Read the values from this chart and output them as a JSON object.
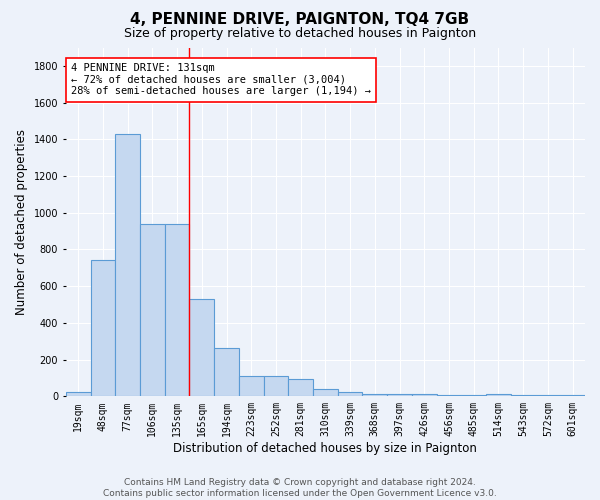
{
  "title": "4, PENNINE DRIVE, PAIGNTON, TQ4 7GB",
  "subtitle": "Size of property relative to detached houses in Paignton",
  "xlabel": "Distribution of detached houses by size in Paignton",
  "ylabel": "Number of detached properties",
  "bar_labels": [
    "19sqm",
    "48sqm",
    "77sqm",
    "106sqm",
    "135sqm",
    "165sqm",
    "194sqm",
    "223sqm",
    "252sqm",
    "281sqm",
    "310sqm",
    "339sqm",
    "368sqm",
    "397sqm",
    "426sqm",
    "456sqm",
    "485sqm",
    "514sqm",
    "543sqm",
    "572sqm",
    "601sqm"
  ],
  "bar_values": [
    25,
    740,
    1430,
    940,
    940,
    530,
    265,
    110,
    110,
    95,
    40,
    25,
    15,
    15,
    15,
    5,
    5,
    15,
    5,
    5,
    5
  ],
  "bar_color": "#c5d8f0",
  "bar_edge_color": "#5b9bd5",
  "bar_edge_width": 0.8,
  "red_line_x": 4.5,
  "annotation_text": "4 PENNINE DRIVE: 131sqm\n← 72% of detached houses are smaller (3,004)\n28% of semi-detached houses are larger (1,194) →",
  "annotation_box_color": "white",
  "annotation_box_edge_color": "red",
  "ylim": [
    0,
    1900
  ],
  "yticks": [
    0,
    200,
    400,
    600,
    800,
    1000,
    1200,
    1400,
    1600,
    1800
  ],
  "bg_color": "#edf2fa",
  "plot_bg_color": "#edf2fa",
  "footer_text": "Contains HM Land Registry data © Crown copyright and database right 2024.\nContains public sector information licensed under the Open Government Licence v3.0.",
  "title_fontsize": 11,
  "subtitle_fontsize": 9,
  "xlabel_fontsize": 8.5,
  "ylabel_fontsize": 8.5,
  "tick_fontsize": 7,
  "annotation_fontsize": 7.5,
  "footer_fontsize": 6.5
}
